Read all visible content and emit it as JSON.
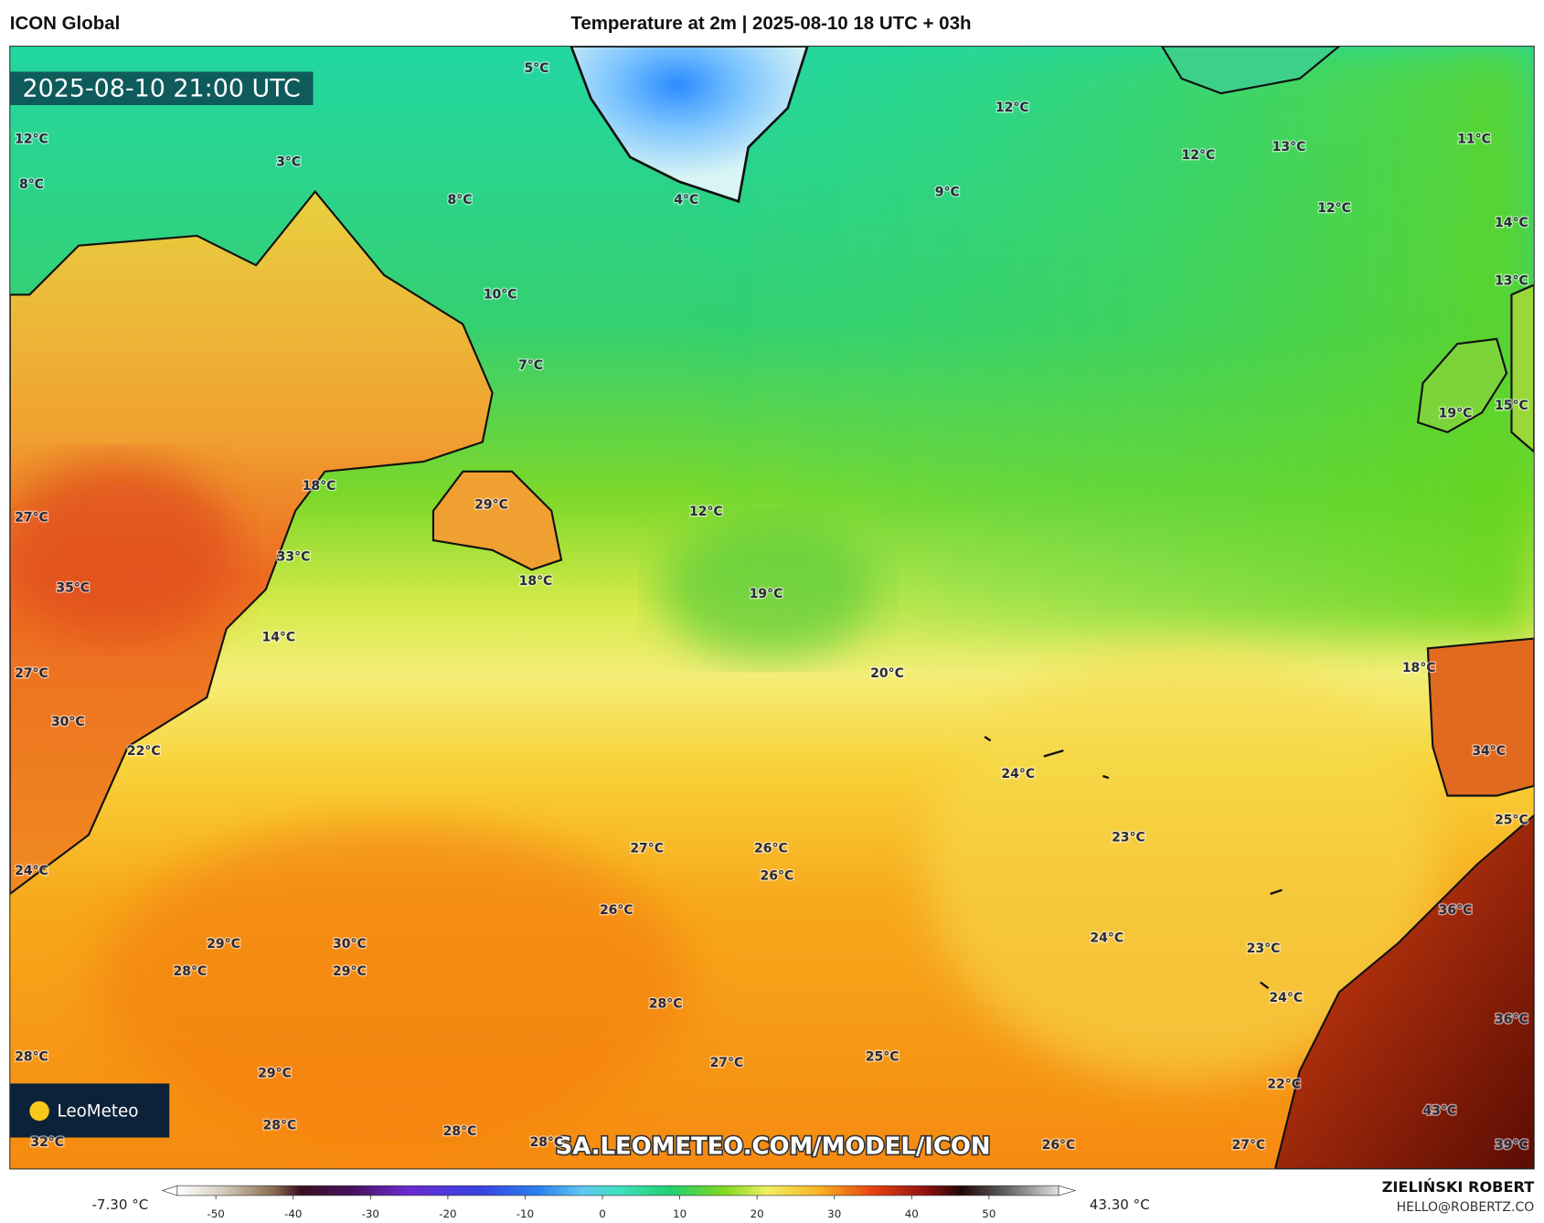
{
  "header": {
    "model": "ICON Global",
    "title": "Temperature at 2m | 2025-08-10 18 UTC + 03h"
  },
  "map": {
    "valid_time": "2025-08-10 21:00 UTC",
    "temperature_labels": [
      "5°C",
      "12°C",
      "8°C",
      "3°C",
      "8°C",
      "4°C",
      "9°C",
      "12°C",
      "12°C",
      "13°C",
      "11°C",
      "12°C",
      "14°C",
      "13°C",
      "10°C",
      "7°C",
      "15°C",
      "19°C",
      "18°C",
      "29°C",
      "12°C",
      "27°C",
      "33°C",
      "18°C",
      "35°C",
      "19°C",
      "14°C",
      "20°C",
      "18°C",
      "27°C",
      "30°C",
      "22°C",
      "24°C",
      "34°C",
      "25°C",
      "23°C",
      "27°C",
      "26°C",
      "26°C",
      "24°C",
      "26°C",
      "36°C",
      "24°C",
      "29°C",
      "30°C",
      "23°C",
      "28°C",
      "29°C",
      "24°C",
      "28°C",
      "36°C",
      "28°C",
      "27°C",
      "25°C",
      "29°C",
      "22°C",
      "43°C",
      "28°C",
      "28°C",
      "28°C",
      "32°C",
      "27°C",
      "26°C",
      "39°C"
    ],
    "watermark": "SA.LEOMETEO.COM/MODEL/ICON",
    "logo": "LeoMeteo"
  },
  "legend": {
    "min_label": "-7.30 °C",
    "max_label": "43.30 °C",
    "ticks": [
      -50,
      -40,
      -30,
      -20,
      -10,
      0,
      10,
      20,
      30,
      40,
      50
    ],
    "range": [
      -55,
      59
    ]
  },
  "footer": {
    "author": "ZIELIŃSKI ROBERT",
    "email": "HELLO@ROBERTZ.CO"
  }
}
